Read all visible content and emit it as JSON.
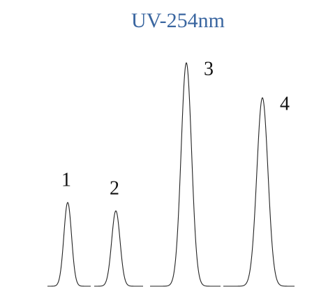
{
  "title": "UV-254nm",
  "peaks": [
    {
      "label": "1"
    },
    {
      "label": "2"
    },
    {
      "label": "3"
    },
    {
      "label": "4"
    }
  ]
}
